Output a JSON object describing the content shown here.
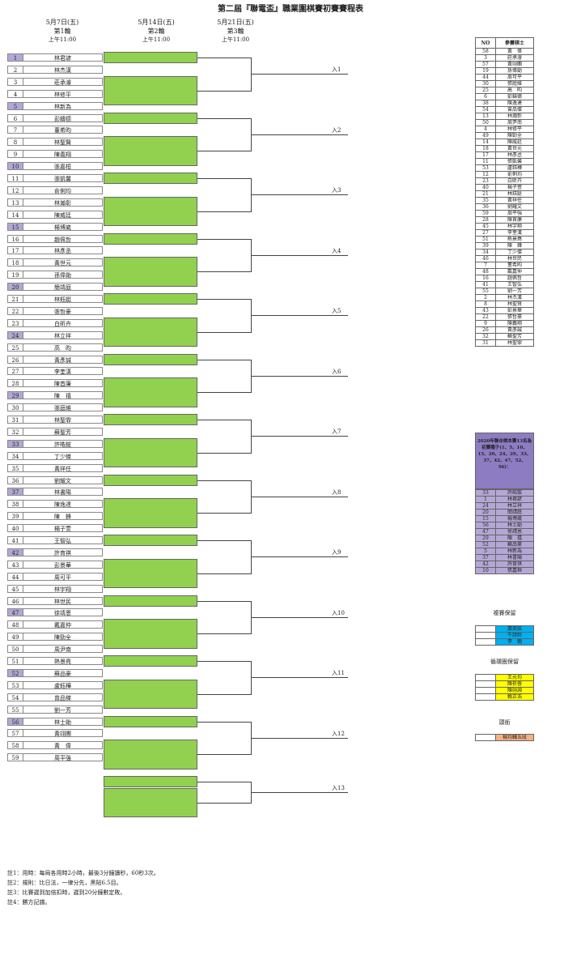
{
  "title": "第二屆『聯電盃』職業圍棋賽初賽賽程表",
  "rounds": [
    {
      "date": "5月7日(五)",
      "name": "第1輪",
      "time": "上午11:00"
    },
    {
      "date": "5月14日(五)",
      "name": "第2輪",
      "time": "上午11:00"
    },
    {
      "date": "5月21日(五)",
      "name": "第3輪",
      "time": "上午11:00"
    }
  ],
  "players": [
    {
      "no": "1",
      "name": "林君諺",
      "seed": true
    },
    {
      "no": "2",
      "name": "林杰漢",
      "seed": false
    },
    {
      "no": "3",
      "name": "莊承濬",
      "seed": false
    },
    {
      "no": "4",
      "name": "林修平",
      "seed": false
    },
    {
      "no": "5",
      "name": "林新為",
      "seed": true
    },
    {
      "no": "6",
      "name": "彭鑄德",
      "seed": false
    },
    {
      "no": "7",
      "name": "董希昀",
      "seed": false
    },
    {
      "no": "8",
      "name": "林聖賢",
      "seed": false
    },
    {
      "no": "9",
      "name": "陳義翔",
      "seed": false
    },
    {
      "no": "10",
      "name": "張嘉桓",
      "seed": true
    },
    {
      "no": "11",
      "name": "張凱馨",
      "seed": false
    },
    {
      "no": "12",
      "name": "俞俐均",
      "seed": false
    },
    {
      "no": "13",
      "name": "林瀚彰",
      "seed": false
    },
    {
      "no": "14",
      "name": "陳威廷",
      "seed": false
    },
    {
      "no": "15",
      "name": "楊博崴",
      "seed": true
    },
    {
      "no": "16",
      "name": "趙佩哲",
      "seed": false
    },
    {
      "no": "17",
      "name": "林彥丞",
      "seed": false
    },
    {
      "no": "18",
      "name": "黃世元",
      "seed": false
    },
    {
      "no": "19",
      "name": "孫偉勛",
      "seed": false
    },
    {
      "no": "20",
      "name": "簡靖庭",
      "seed": true
    },
    {
      "no": "21",
      "name": "林鈺娗",
      "seed": false
    },
    {
      "no": "22",
      "name": "張哲豪",
      "seed": false
    },
    {
      "no": "23",
      "name": "白昕卉",
      "seed": false
    },
    {
      "no": "24",
      "name": "林立祥",
      "seed": true
    },
    {
      "no": "25",
      "name": "高　昀",
      "seed": false
    },
    {
      "no": "26",
      "name": "黃彥誠",
      "seed": false
    },
    {
      "no": "27",
      "name": "李奎漢",
      "seed": false
    },
    {
      "no": "28",
      "name": "陳首廉",
      "seed": false
    },
    {
      "no": "29",
      "name": "陳　禧",
      "seed": true
    },
    {
      "no": "30",
      "name": "張庭維",
      "seed": false
    },
    {
      "no": "31",
      "name": "林聖霏",
      "seed": false
    },
    {
      "no": "32",
      "name": "蘇聖芳",
      "seed": false
    },
    {
      "no": "33",
      "name": "許皓鋐",
      "seed": true
    },
    {
      "no": "34",
      "name": "丁少傑",
      "seed": false
    },
    {
      "no": "35",
      "name": "黃祥任",
      "seed": false
    },
    {
      "no": "36",
      "name": "劉耀文",
      "seed": false
    },
    {
      "no": "37",
      "name": "林書陽",
      "seed": true
    },
    {
      "no": "38",
      "name": "陳逸達",
      "seed": false
    },
    {
      "no": "39",
      "name": "陳　鋒",
      "seed": false
    },
    {
      "no": "40",
      "name": "楊子萱",
      "seed": false
    },
    {
      "no": "41",
      "name": "王智弘",
      "seed": false
    },
    {
      "no": "42",
      "name": "許育祺",
      "seed": true
    },
    {
      "no": "43",
      "name": "彭景華",
      "seed": false
    },
    {
      "no": "44",
      "name": "周可平",
      "seed": false
    },
    {
      "no": "45",
      "name": "林宇翔",
      "seed": false
    },
    {
      "no": "46",
      "name": "林世民",
      "seed": false
    },
    {
      "no": "47",
      "name": "徐靖恩",
      "seed": true
    },
    {
      "no": "48",
      "name": "戴嘉仲",
      "seed": false
    },
    {
      "no": "49",
      "name": "陳勁全",
      "seed": false
    },
    {
      "no": "50",
      "name": "周尹南",
      "seed": false
    },
    {
      "no": "51",
      "name": "熱景堯",
      "seed": false
    },
    {
      "no": "52",
      "name": "蘇品豪",
      "seed": true
    },
    {
      "no": "53",
      "name": "盧鈺樺",
      "seed": false
    },
    {
      "no": "54",
      "name": "曾品傑",
      "seed": false
    },
    {
      "no": "55",
      "name": "劉一芳",
      "seed": false
    },
    {
      "no": "56",
      "name": "林士勛",
      "seed": true
    },
    {
      "no": "57",
      "name": "黃翊團",
      "seed": false
    },
    {
      "no": "58",
      "name": "黃　偉",
      "seed": false
    },
    {
      "no": "59",
      "name": "周平強",
      "seed": false
    }
  ],
  "advance_labels": [
    "入1",
    "入2",
    "入3",
    "入4",
    "入5",
    "入6",
    "入7",
    "入8",
    "入9",
    "入10",
    "入11",
    "入12",
    "入13"
  ],
  "participants": {
    "header": {
      "no": "NO",
      "name": "參賽棋士"
    },
    "rows": [
      [
        "58",
        "黃　偉"
      ],
      [
        "3",
        "莊承濬"
      ],
      [
        "57",
        "黃翊團"
      ],
      [
        "19",
        "孫偉勛"
      ],
      [
        "44",
        "周可平"
      ],
      [
        "30",
        "張庭維"
      ],
      [
        "25",
        "高　昀"
      ],
      [
        "6",
        "彭鑄德"
      ],
      [
        "38",
        "陳逸達"
      ],
      [
        "54",
        "曾品傑"
      ],
      [
        "13",
        "林瀚彰"
      ],
      [
        "50",
        "周尹南"
      ],
      [
        "4",
        "林修平"
      ],
      [
        "49",
        "陳勁全"
      ],
      [
        "14",
        "陳威廷"
      ],
      [
        "18",
        "黃世元"
      ],
      [
        "17",
        "林彥丞"
      ],
      [
        "11",
        "張凱馨"
      ],
      [
        "53",
        "盧鈺樺"
      ],
      [
        "12",
        "俞俐均"
      ],
      [
        "23",
        "白昕卉"
      ],
      [
        "40",
        "楊子萱"
      ],
      [
        "21",
        "林鈺娗"
      ],
      [
        "35",
        "黃祥任"
      ],
      [
        "36",
        "劉耀文"
      ],
      [
        "59",
        "周平強"
      ],
      [
        "28",
        "陳首廉"
      ],
      [
        "45",
        "林宇翔"
      ],
      [
        "27",
        "李奎漢"
      ],
      [
        "51",
        "熱景堯"
      ],
      [
        "39",
        "陳　鋒"
      ],
      [
        "34",
        "丁少傑"
      ],
      [
        "46",
        "林世民"
      ],
      [
        "7",
        "董希昀"
      ],
      [
        "48",
        "戴嘉仲"
      ],
      [
        "16",
        "趙佩哲"
      ],
      [
        "41",
        "王智弘"
      ],
      [
        "55",
        "劉一芳"
      ],
      [
        "2",
        "林杰漢"
      ],
      [
        "8",
        "林聖賢"
      ],
      [
        "43",
        "彭景華"
      ],
      [
        "22",
        "張哲豪"
      ],
      [
        "9",
        "陳義翔"
      ],
      [
        "26",
        "黃彥誠"
      ],
      [
        "32",
        "蘇聖芳"
      ],
      [
        "31",
        "林聖霏"
      ]
    ]
  },
  "seeds_box_title": "2020年聯合棋本賽13名為初賽種子(1、5、10、15、20、24、29、33、37、42、47、52、56)：",
  "seeds": [
    [
      "33",
      "許皓鋐"
    ],
    [
      "1",
      "林君諺"
    ],
    [
      "24",
      "林立祥"
    ],
    [
      "20",
      "簡靖庭"
    ],
    [
      "15",
      "楊博崴"
    ],
    [
      "56",
      "林士勛"
    ],
    [
      "47",
      "徐靖恩"
    ],
    [
      "29",
      "陳　禧"
    ],
    [
      "52",
      "蘇品豪"
    ],
    [
      "5",
      "林新為"
    ],
    [
      "37",
      "林書陽"
    ],
    [
      "42",
      "許育祺"
    ],
    [
      "10",
      "張嘉桓"
    ]
  ],
  "final_reserved": {
    "label": "複賽保留",
    "names": [
      "蕭英紘",
      "牛詩鈴",
      "李　翰"
    ],
    "color": "#00b0f0"
  },
  "loop_reserved": {
    "label": "循環圈保留",
    "names": [
      "王元均",
      "陳祈睿",
      "陳翊淵",
      "賴正浩"
    ],
    "color": "#ffff00"
  },
  "champion": {
    "label": "頭銜",
    "names": [
      "楊均輔五段"
    ],
    "color": "#f4b183"
  },
  "notes": [
    "註1：用時：每局各用時2小時，最後3分鐘讀秒，60秒3次。",
    "註2：規則：比日法，一律分先，黑貼6.5目。",
    "註3：比賽遲到加倍扣時，遲到20分鐘數定敗。",
    "註4：勝方記譜。"
  ],
  "colors": {
    "seed": "#b4a7d6",
    "round2": "#92d050",
    "round1": "#e6a0a8",
    "panel": "#8e7cc3"
  }
}
